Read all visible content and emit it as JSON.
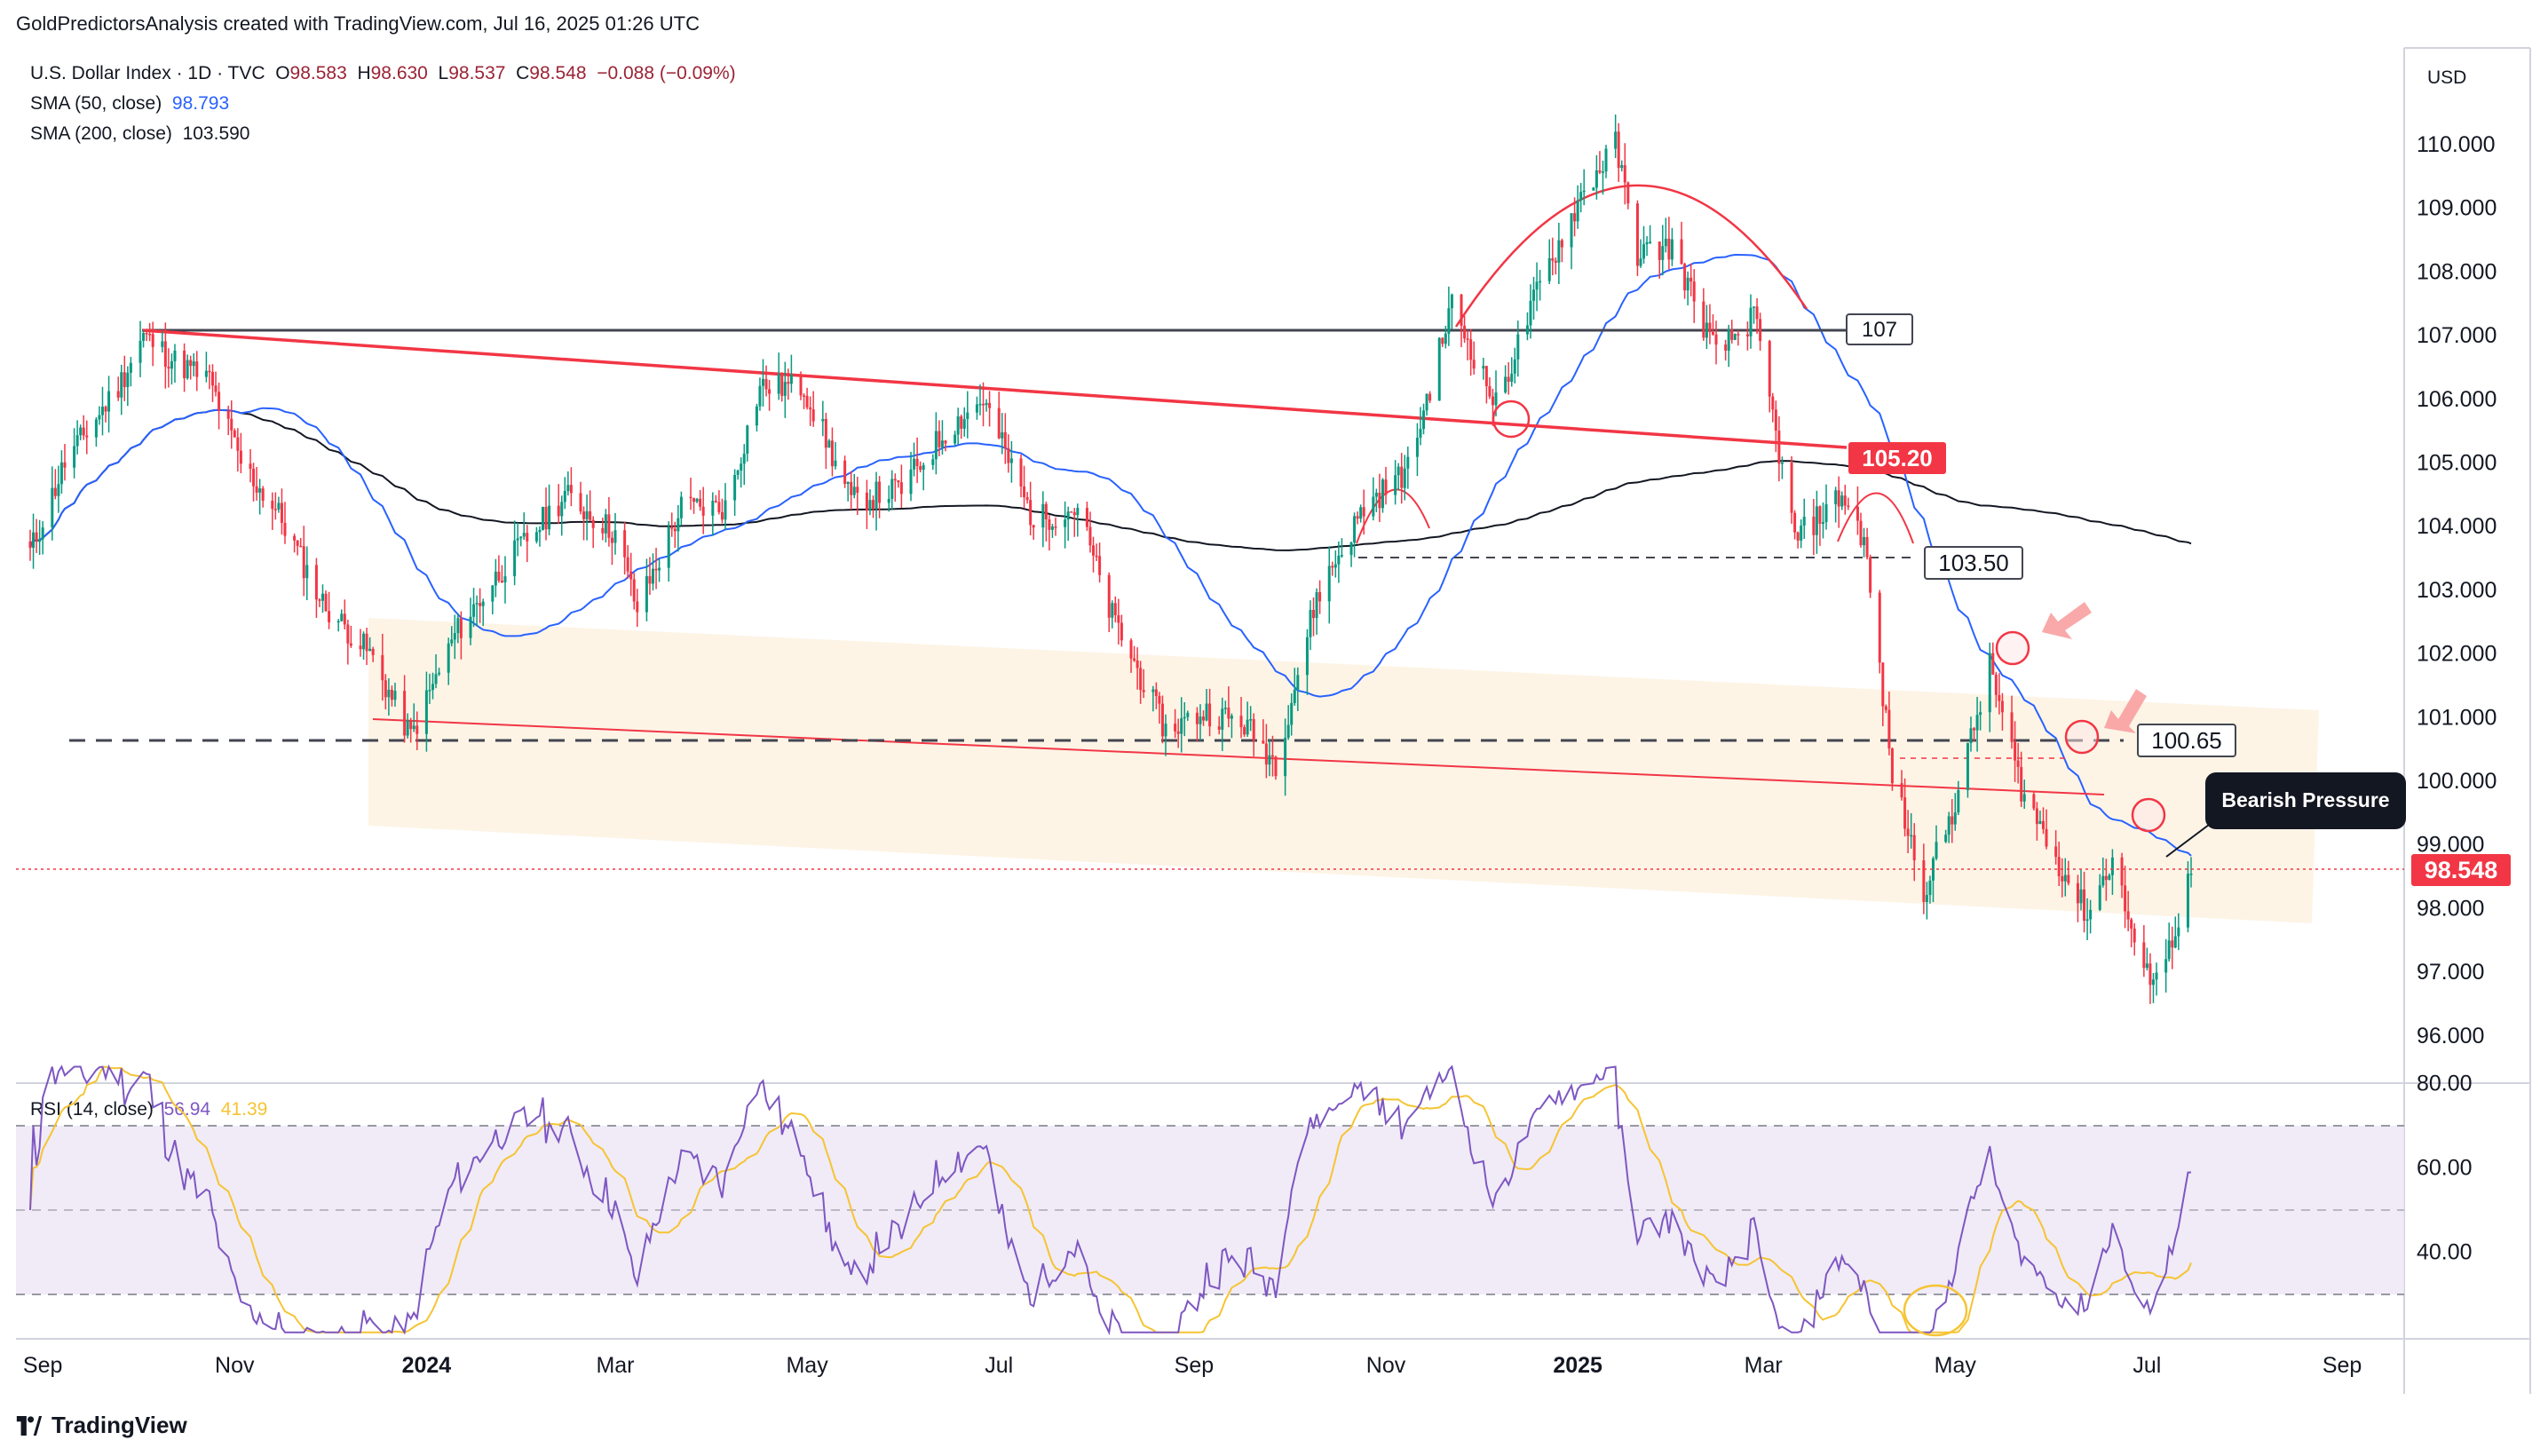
{
  "header": "GoldPredictorsAnalysis created with TradingView.com, Jul 16, 2025 01:26 UTC",
  "legend": {
    "symbol": "U.S. Dollar Index · 1D · TVC",
    "o_label": "O",
    "o_val": "98.583",
    "h_label": "H",
    "h_val": "98.630",
    "l_label": "L",
    "l_val": "98.537",
    "c_label": "C",
    "c_val": "98.548",
    "chg": "−0.088 (−0.09%)",
    "sma50_label": "SMA (50, close)",
    "sma50_val": "98.793",
    "sma200_label": "SMA (200, close)",
    "sma200_val": "103.590",
    "rsi_label": "RSI (14, close)",
    "rsi_val": "56.94",
    "rsi_ma_val": "41.39"
  },
  "currency": "USD",
  "footer": "TradingView",
  "colors": {
    "up": "#089981",
    "down": "#f23645",
    "sma50": "#2962ff",
    "sma200": "#131722",
    "rsi": "#7e57c2",
    "rsi_ma": "#f6c433",
    "channel": "#fdf3e3"
  },
  "chart_data": [
    {
      "type": "candlestick",
      "title": "U.S. Dollar Index",
      "ylim": [
        95.2,
        111.0
      ],
      "yticks": [
        96,
        97,
        98,
        99,
        100,
        101,
        102,
        103,
        104,
        105,
        106,
        107,
        108,
        109,
        110
      ],
      "ytick_labels": [
        "96.000",
        "97.000",
        "98.000",
        "99.000",
        "100.000",
        "101.000",
        "102.000",
        "103.000",
        "104.000",
        "105.000",
        "106.000",
        "107.000",
        "108.000",
        "109.000",
        "110.000"
      ],
      "xticks": [
        "Sep",
        "Nov",
        "2024",
        "Mar",
        "May",
        "Jul",
        "Sep",
        "Nov",
        "2025",
        "Mar",
        "May",
        "Jul",
        "Sep"
      ],
      "close_path": [
        [
          "2023-08-28",
          103.6
        ],
        [
          "2023-09-08",
          105.0
        ],
        [
          "2023-09-25",
          106.2
        ],
        [
          "2023-10-03",
          107.0
        ],
        [
          "2023-10-13",
          106.6
        ],
        [
          "2023-10-24",
          106.3
        ],
        [
          "2023-11-03",
          105.0
        ],
        [
          "2023-11-15",
          104.2
        ],
        [
          "2023-11-29",
          102.8
        ],
        [
          "2023-12-14",
          102.0
        ],
        [
          "2023-12-27",
          100.7
        ],
        [
          "2024-01-10",
          102.3
        ],
        [
          "2024-01-26",
          103.4
        ],
        [
          "2024-02-14",
          104.5
        ],
        [
          "2024-03-01",
          103.9
        ],
        [
          "2024-03-08",
          102.7
        ],
        [
          "2024-03-22",
          104.3
        ],
        [
          "2024-04-05",
          104.3
        ],
        [
          "2024-04-16",
          106.2
        ],
        [
          "2024-04-30",
          106.2
        ],
        [
          "2024-05-15",
          104.4
        ],
        [
          "2024-05-31",
          104.6
        ],
        [
          "2024-06-14",
          105.5
        ],
        [
          "2024-06-26",
          106.0
        ],
        [
          "2024-07-12",
          104.1
        ],
        [
          "2024-07-26",
          104.3
        ],
        [
          "2024-08-05",
          102.7
        ],
        [
          "2024-08-23",
          100.8
        ],
        [
          "2024-09-05",
          101.1
        ],
        [
          "2024-09-17",
          100.9
        ],
        [
          "2024-09-27",
          100.3
        ],
        [
          "2024-10-10",
          102.9
        ],
        [
          "2024-10-25",
          104.3
        ],
        [
          "2024-11-08",
          104.9
        ],
        [
          "2024-11-22",
          107.5
        ],
        [
          "2024-12-06",
          105.9
        ],
        [
          "2024-12-20",
          107.8
        ],
        [
          "2025-01-02",
          109.2
        ],
        [
          "2025-01-13",
          110.0
        ],
        [
          "2025-01-20",
          108.3
        ],
        [
          "2025-01-31",
          108.4
        ],
        [
          "2025-02-14",
          106.7
        ],
        [
          "2025-02-26",
          107.3
        ],
        [
          "2025-03-03",
          106.0
        ],
        [
          "2025-03-11",
          103.8
        ],
        [
          "2025-03-26",
          104.5
        ],
        [
          "2025-04-02",
          103.8
        ],
        [
          "2025-04-11",
          100.1
        ],
        [
          "2025-04-21",
          98.3
        ],
        [
          "2025-04-30",
          99.5
        ],
        [
          "2025-05-12",
          101.8
        ],
        [
          "2025-05-22",
          99.9
        ],
        [
          "2025-06-02",
          98.8
        ],
        [
          "2025-06-12",
          97.9
        ],
        [
          "2025-06-20",
          98.8
        ],
        [
          "2025-06-30",
          96.9
        ],
        [
          "2025-07-07",
          97.2
        ],
        [
          "2025-07-15",
          98.55
        ]
      ],
      "sma50": {
        "label": "SMA (50, close)",
        "last": 98.793
      },
      "sma200": {
        "label": "SMA (200, close)",
        "last": 103.59
      },
      "levels": [
        107,
        105.2,
        103.5,
        100.65
      ],
      "level_labels": [
        "107",
        "105.20",
        "103.50",
        "100.65"
      ],
      "last_price": 98.548,
      "last_price_label": "98.548",
      "annotations": [
        "Bearish Pressure"
      ]
    },
    {
      "type": "line",
      "title": "RSI (14, close)",
      "ylim": [
        20,
        85
      ],
      "yticks": [
        40,
        60,
        80
      ],
      "ytick_labels": [
        "40.00",
        "60.00",
        "80.00"
      ],
      "band": [
        30,
        70
      ],
      "series": [
        {
          "name": "RSI",
          "last": 56.94
        },
        {
          "name": "RSI-based MA",
          "last": 41.39
        }
      ]
    }
  ]
}
